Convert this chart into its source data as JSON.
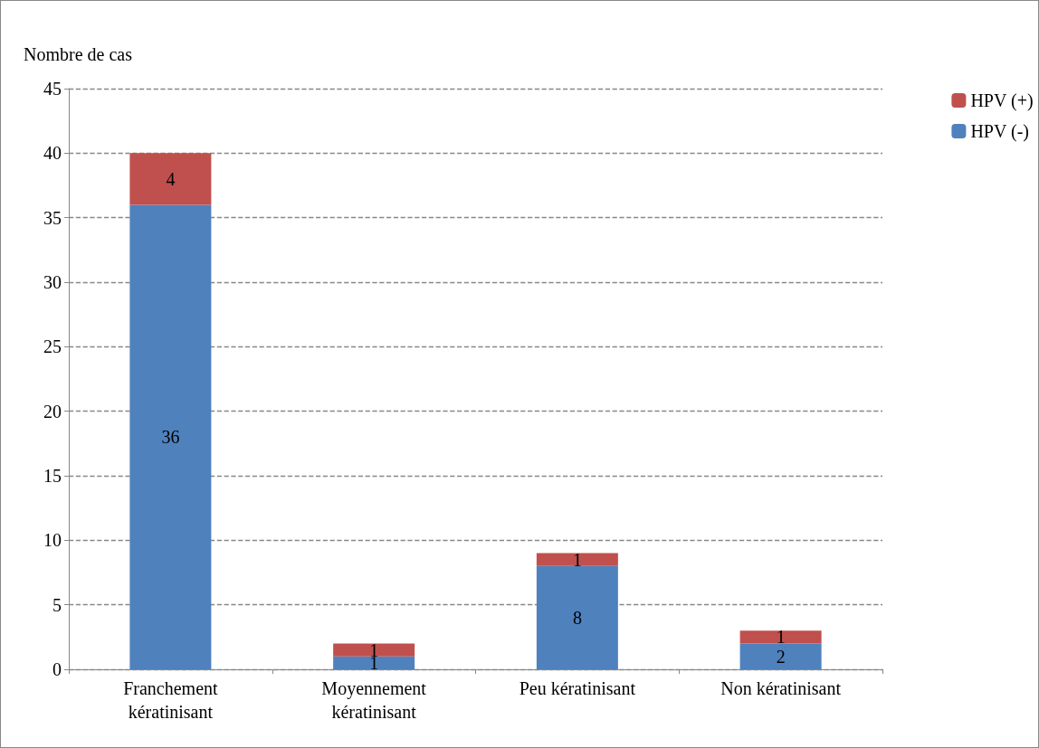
{
  "chart_data": {
    "type": "bar",
    "ylabel": "Nombre de cas",
    "categories": [
      "Franchement\nkératinisant",
      "Moyennement\nkératinisant",
      "Peu kératinisant",
      "Non kératinisant"
    ],
    "series": [
      {
        "name": "HPV (-)",
        "color": "#4f81bd",
        "values": [
          36,
          1,
          8,
          2
        ]
      },
      {
        "name": "HPV (+)",
        "color": "#c0504d",
        "values": [
          4,
          1,
          1,
          1
        ]
      }
    ],
    "stacked": true,
    "ylim": [
      0,
      45
    ],
    "yticks": [
      0,
      5,
      10,
      15,
      20,
      25,
      30,
      35,
      40,
      45
    ],
    "grid": "y",
    "legend": "top right",
    "data_labels": true
  }
}
